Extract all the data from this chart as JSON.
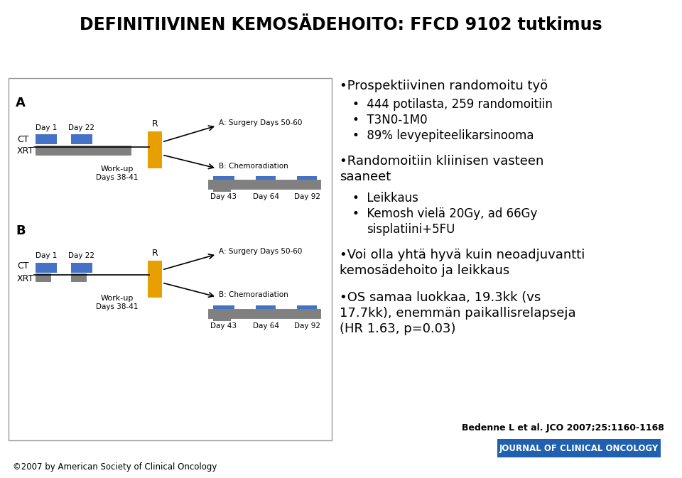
{
  "title": "DEFINITIIVINEN KEMOSÄDEHOITO: FFCD 9102 tutkimus",
  "title_fontsize": 17,
  "background_color": "#ffffff",
  "diagram_border_color": "#999999",
  "blue_color": "#4472c4",
  "gray_color": "#808080",
  "yellow_color": "#e8a000",
  "jco_bg_color": "#2060b0",
  "jco_text_color": "#ffffff",
  "reference_text": "Bedenne L et al. JCO 2007;25:1160-1168",
  "jco_label": "JOURNAL OF CLINICAL ONCOLOGY",
  "footer_text": "©2007 by American Society of Clinical Oncology"
}
